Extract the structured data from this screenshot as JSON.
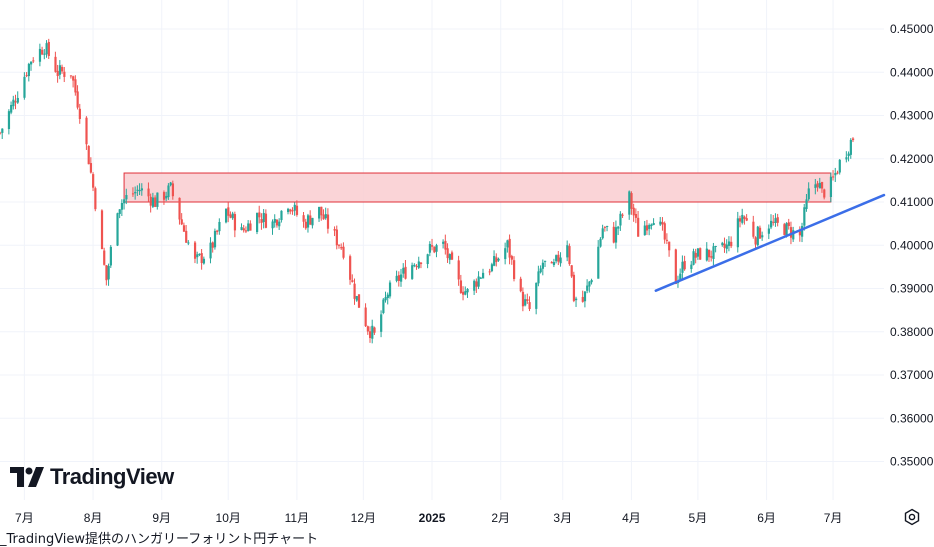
{
  "caption": "_TradingView提供のハンガリーフォリント円チャート",
  "logo": {
    "text": "TradingView",
    "icon": "tradingview-logo-icon"
  },
  "settings_icon": "settings-gear-icon",
  "colors": {
    "up": "#26a69a",
    "down": "#ef5350",
    "grid": "#f0f3fa",
    "zone_fill": "#f9cdd0",
    "zone_stroke": "#e0303a",
    "trendline": "#3b6ee8"
  },
  "chart_data": {
    "type": "candlestick",
    "title": "",
    "ylim": [
      0.34,
      0.453
    ],
    "y_ticks": [
      "0.45000",
      "0.44000",
      "0.43000",
      "0.42000",
      "0.41000",
      "0.40000",
      "0.39000",
      "0.38000",
      "0.37000",
      "0.36000",
      "0.35000"
    ],
    "x_labels": [
      {
        "label": "7月",
        "date": "2024-07-01"
      },
      {
        "label": "8月",
        "date": "2024-08-01"
      },
      {
        "label": "9月",
        "date": "2024-09-01"
      },
      {
        "label": "10月",
        "date": "2024-10-01"
      },
      {
        "label": "11月",
        "date": "2024-11-01"
      },
      {
        "label": "12月",
        "date": "2024-12-01"
      },
      {
        "label": "2025",
        "date": "2025-01-01",
        "bold": true
      },
      {
        "label": "2月",
        "date": "2025-02-01"
      },
      {
        "label": "3月",
        "date": "2025-03-01"
      },
      {
        "label": "4月",
        "date": "2025-04-01"
      },
      {
        "label": "5月",
        "date": "2025-05-01"
      },
      {
        "label": "6月",
        "date": "2025-06-01"
      },
      {
        "label": "7月",
        "date": "2025-07-01"
      }
    ],
    "x_range": [
      "2024-06-20",
      "2025-07-24"
    ],
    "close_path": [
      [
        "2024-06-20",
        0.426
      ],
      [
        "2024-06-26",
        0.433
      ],
      [
        "2024-07-04",
        0.443
      ],
      [
        "2024-07-10",
        0.446
      ],
      [
        "2024-07-16",
        0.44
      ],
      [
        "2024-07-22",
        0.44
      ],
      [
        "2024-07-26",
        0.431
      ],
      [
        "2024-07-30",
        0.42
      ],
      [
        "2024-08-02",
        0.41
      ],
      [
        "2024-08-05",
        0.398
      ],
      [
        "2024-08-07",
        0.392
      ],
      [
        "2024-08-12",
        0.409
      ],
      [
        "2024-08-16",
        0.411
      ],
      [
        "2024-08-22",
        0.413
      ],
      [
        "2024-08-29",
        0.41
      ],
      [
        "2024-09-05",
        0.413
      ],
      [
        "2024-09-10",
        0.405
      ],
      [
        "2024-09-16",
        0.396
      ],
      [
        "2024-09-23",
        0.399
      ],
      [
        "2024-09-30",
        0.408
      ],
      [
        "2024-10-07",
        0.403
      ],
      [
        "2024-10-14",
        0.407
      ],
      [
        "2024-10-21",
        0.405
      ],
      [
        "2024-10-28",
        0.41
      ],
      [
        "2024-11-04",
        0.405
      ],
      [
        "2024-11-11",
        0.408
      ],
      [
        "2024-11-18",
        0.402
      ],
      [
        "2024-11-22",
        0.399
      ],
      [
        "2024-11-27",
        0.389
      ],
      [
        "2024-12-03",
        0.381
      ],
      [
        "2024-12-06",
        0.379
      ],
      [
        "2024-12-12",
        0.389
      ],
      [
        "2024-12-18",
        0.393
      ],
      [
        "2024-12-24",
        0.396
      ],
      [
        "2024-12-31",
        0.399
      ],
      [
        "2025-01-06",
        0.4
      ],
      [
        "2025-01-13",
        0.391
      ],
      [
        "2025-01-17",
        0.389
      ],
      [
        "2025-01-24",
        0.394
      ],
      [
        "2025-01-28",
        0.395
      ],
      [
        "2025-02-04",
        0.4
      ],
      [
        "2025-02-10",
        0.388
      ],
      [
        "2025-02-14",
        0.385
      ],
      [
        "2025-02-20",
        0.396
      ],
      [
        "2025-02-24",
        0.394
      ],
      [
        "2025-03-03",
        0.401
      ],
      [
        "2025-03-06",
        0.388
      ],
      [
        "2025-03-10",
        0.387
      ],
      [
        "2025-03-14",
        0.393
      ],
      [
        "2025-03-19",
        0.404
      ],
      [
        "2025-03-24",
        0.402
      ],
      [
        "2025-03-31",
        0.411
      ],
      [
        "2025-04-04",
        0.403
      ],
      [
        "2025-04-11",
        0.407
      ],
      [
        "2025-04-15",
        0.403
      ],
      [
        "2025-04-21",
        0.392
      ],
      [
        "2025-04-25",
        0.396
      ],
      [
        "2025-05-02",
        0.398
      ],
      [
        "2025-05-09",
        0.398
      ],
      [
        "2025-05-15",
        0.4
      ],
      [
        "2025-05-21",
        0.407
      ],
      [
        "2025-05-27",
        0.402
      ],
      [
        "2025-06-02",
        0.405
      ],
      [
        "2025-06-09",
        0.404
      ],
      [
        "2025-06-16",
        0.402
      ],
      [
        "2025-06-20",
        0.412
      ],
      [
        "2025-06-24",
        0.415
      ],
      [
        "2025-06-26",
        0.412
      ],
      [
        "2025-06-30",
        0.414
      ],
      [
        "2025-07-04",
        0.419
      ],
      [
        "2025-07-08",
        0.423
      ],
      [
        "2025-07-10",
        0.425
      ]
    ],
    "resistance_zone": {
      "from": "2024-08-15",
      "to": "2025-06-30",
      "low": 0.41,
      "high": 0.4167
    },
    "trendline": {
      "from": [
        "2025-04-12",
        0.3895
      ],
      "to": [
        "2025-07-24",
        0.4116
      ]
    }
  }
}
